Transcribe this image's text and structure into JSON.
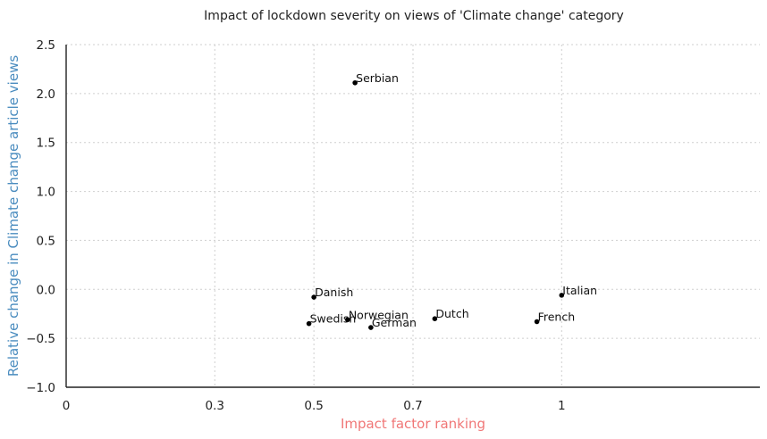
{
  "chart_data": {
    "type": "scatter",
    "title": "Impact of lockdown severity on views of 'Climate change' category",
    "xlabel": "Impact factor ranking",
    "ylabel": "Relative change in Climate change article views",
    "xlim": [
      0,
      1.4
    ],
    "ylim": [
      -1.0,
      2.5
    ],
    "xticks": [
      0,
      0.3,
      0.5,
      0.7,
      1
    ],
    "xtick_labels": [
      "0",
      "0.3",
      "0.5",
      "0.7",
      "1"
    ],
    "yticks": [
      -1.0,
      -0.5,
      0.0,
      0.5,
      1.0,
      1.5,
      2.0,
      2.5
    ],
    "ytick_labels": [
      "−1.0",
      "−0.5",
      "0.0",
      "0.5",
      "1.0",
      "1.5",
      "2.0",
      "2.5"
    ],
    "grid": true,
    "points": [
      {
        "label": "Serbian",
        "x": 0.583,
        "y": 2.11
      },
      {
        "label": "Danish",
        "x": 0.5,
        "y": -0.08
      },
      {
        "label": "Swedish",
        "x": 0.49,
        "y": -0.35
      },
      {
        "label": "Norwegian",
        "x": 0.568,
        "y": -0.31
      },
      {
        "label": "German",
        "x": 0.615,
        "y": -0.39
      },
      {
        "label": "Dutch",
        "x": 0.744,
        "y": -0.3
      },
      {
        "label": "Italian",
        "x": 1.0,
        "y": -0.06
      },
      {
        "label": "French",
        "x": 0.95,
        "y": -0.33
      }
    ]
  },
  "colors": {
    "xlabel": "#F07777",
    "ylabel": "#4A8CBF",
    "axis": "#222222",
    "grid": "#CFCFCF",
    "point": "#000000"
  }
}
